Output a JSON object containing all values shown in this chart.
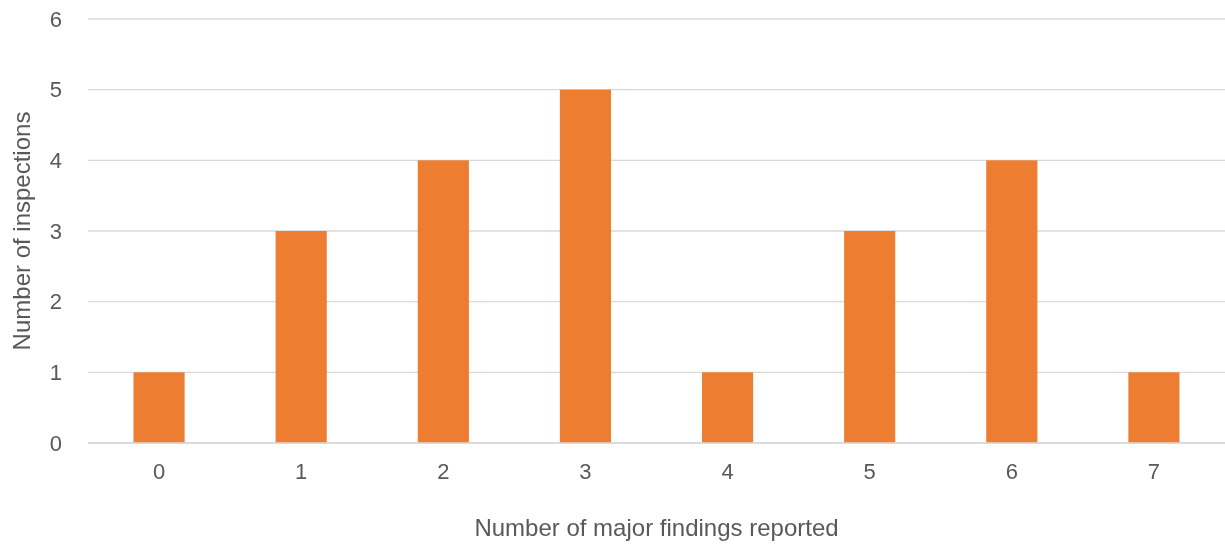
{
  "chart_data": {
    "type": "bar",
    "xlabel": "Number of major findings reported",
    "ylabel": "Number of inspections",
    "categories": [
      "0",
      "1",
      "2",
      "3",
      "4",
      "5",
      "6",
      "7"
    ],
    "values": [
      1,
      3,
      4,
      5,
      1,
      3,
      4,
      1
    ],
    "color": "#ed7d31",
    "ylim": [
      0,
      6
    ],
    "yticks": [
      0,
      1,
      2,
      3,
      4,
      5,
      6
    ],
    "grid": "y"
  }
}
